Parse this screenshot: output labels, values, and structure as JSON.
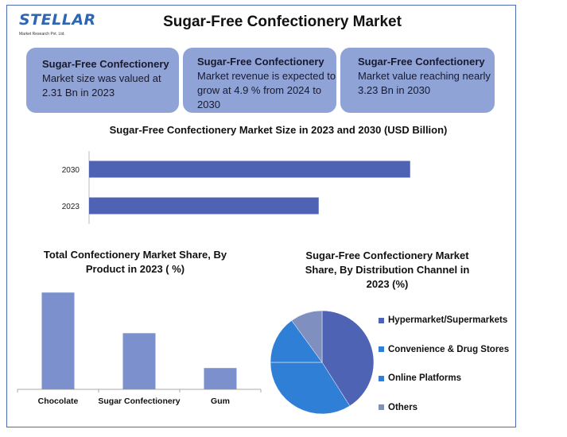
{
  "header": {
    "logo_text": "STELLAR",
    "logo_subtext": "Market Research Pvt. Ltd.",
    "title": "Sugar-Free Confectionery Market"
  },
  "cards": [
    {
      "title": "Sugar-Free Confectionery",
      "body": "Market size was valued at 2.31 Bn in 2023"
    },
    {
      "title": "Sugar-Free Confectionery",
      "body": "Market revenue is expected to grow at 4.9 % from 2024 to 2030"
    },
    {
      "title": "Sugar-Free Confectionery",
      "body": "Market value reaching nearly 3.23 Bn in 2030"
    }
  ],
  "chart_data": [
    {
      "type": "bar",
      "orientation": "horizontal",
      "title": "Sugar-Free Confectionery Market Size in 2023 and 2030 (USD Billion)",
      "categories": [
        "2030",
        "2023"
      ],
      "values": [
        3.23,
        2.31
      ],
      "xlim": [
        0,
        4.0
      ],
      "color": "#4f63b5",
      "grid": false
    },
    {
      "type": "bar",
      "title": "Total Confectionery Market Share, By Product in 2023 ( %)",
      "categories": [
        "Chocolate",
        "Sugar Confectionery",
        "Gum"
      ],
      "values": [
        50,
        29,
        11
      ],
      "ylim": [
        0,
        55
      ],
      "color": "#7b90cc",
      "grid": false
    },
    {
      "type": "pie",
      "title": "Sugar-Free Confectionery Market Share, By Distribution Channel in 2023 (%)",
      "labels": [
        "Hypermarket/Supermarkets",
        "Convenience & Drug Stores",
        "Online Platforms",
        "Others"
      ],
      "values": [
        41,
        34,
        15,
        10
      ],
      "colors": [
        "#4f63b5",
        "#2f7fd6",
        "#2f7fd6",
        "#7f8fbf"
      ],
      "legend_position": "right"
    }
  ]
}
